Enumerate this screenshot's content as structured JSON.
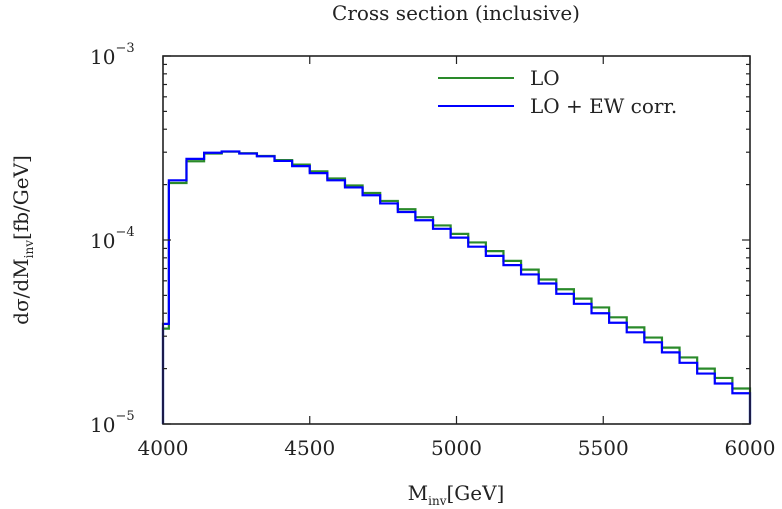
{
  "chart_data": {
    "type": "line",
    "subtype": "step-histogram",
    "title": "Cross section (inclusive)",
    "xlabel": "M_inv[GeV]",
    "ylabel": "dσ/dM_inv[fb/GeV]",
    "xlim": [
      4000,
      6000
    ],
    "ylim": [
      1e-05,
      0.001
    ],
    "yscale": "log",
    "grid": false,
    "legend_position": "upper right",
    "x_ticks": [
      4000,
      4500,
      5000,
      5500,
      6000
    ],
    "x_tick_labels": [
      "4000",
      "4500",
      "5000",
      "5500",
      "6000"
    ],
    "y_ticks": [
      1e-05,
      0.0001,
      0.001
    ],
    "y_tick_labels": [
      {
        "base": "10",
        "exp": "−5"
      },
      {
        "base": "10",
        "exp": "−4"
      },
      {
        "base": "10",
        "exp": "−3"
      }
    ],
    "bin_edges": [
      4000,
      4020,
      4080,
      4140,
      4200,
      4260,
      4320,
      4380,
      4440,
      4500,
      4560,
      4620,
      4680,
      4740,
      4800,
      4860,
      4920,
      4980,
      5040,
      5100,
      5160,
      5220,
      5280,
      5340,
      5400,
      5460,
      5520,
      5580,
      5640,
      5700,
      5760,
      5820,
      5880,
      5940,
      6000
    ],
    "series": [
      {
        "name": "LO",
        "color": "#2a8a2a",
        "values": [
          3.3e-05,
          0.000204,
          0.000268,
          0.000295,
          0.000302,
          0.000296,
          0.000286,
          0.000272,
          0.000257,
          0.000236,
          0.000216,
          0.000198,
          0.00018,
          0.000163,
          0.000147,
          0.000133,
          0.00012,
          0.000108,
          9.7e-05,
          8.7e-05,
          7.7e-05,
          6.9e-05,
          6.1e-05,
          5.4e-05,
          4.8e-05,
          4.3e-05,
          3.8e-05,
          3.35e-05,
          2.95e-05,
          2.6e-05,
          2.3e-05,
          2e-05,
          1.78e-05,
          1.56e-05
        ]
      },
      {
        "name": "LO + EW corr.",
        "color": "#0000ff",
        "values": [
          3.5e-05,
          0.000211,
          0.000276,
          0.000298,
          0.000303,
          0.000295,
          0.000285,
          0.000269,
          0.000252,
          0.000231,
          0.000211,
          0.000193,
          0.000175,
          0.000158,
          0.000142,
          0.000128,
          0.000115,
          0.000103,
          9.2e-05,
          8.2e-05,
          7.3e-05,
          6.5e-05,
          5.8e-05,
          5.1e-05,
          4.5e-05,
          4e-05,
          3.55e-05,
          3.15e-05,
          2.78e-05,
          2.45e-05,
          2.15e-05,
          1.88e-05,
          1.66e-05,
          1.47e-05
        ]
      }
    ]
  },
  "plot": {
    "title": "Cross section (inclusive)",
    "xlabel_main": "M",
    "xlabel_sub": "inv",
    "xlabel_unit": "[GeV]",
    "ylabel_pre": "dσ/dM",
    "ylabel_sub": "inv",
    "ylabel_unit": "[fb/GeV]",
    "legend": [
      {
        "label": "LO",
        "color": "#2a8a2a"
      },
      {
        "label": "LO + EW corr.",
        "color": "#0000ff"
      }
    ]
  }
}
